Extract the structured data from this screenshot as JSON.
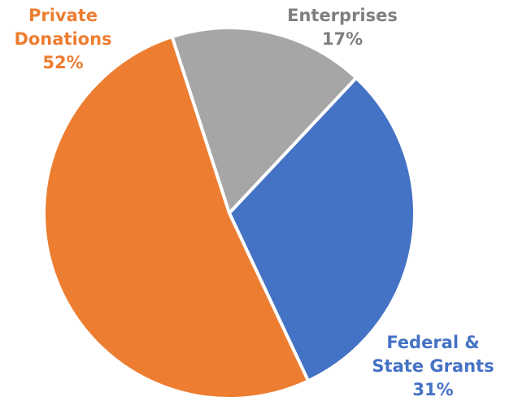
{
  "chart_data": {
    "type": "pie",
    "slices": [
      {
        "id": "enterprises",
        "label_lines": [
          "Enterprises"
        ],
        "value_label": "17%",
        "value": 17,
        "color": "#a6a6a6",
        "text_color": "#7f7f7f"
      },
      {
        "id": "federal-state-grants",
        "label_lines": [
          "Federal &",
          "State Grants"
        ],
        "value_label": "31%",
        "value": 31,
        "color": "#4472c4",
        "text_color": "#4472c4"
      },
      {
        "id": "private-donations",
        "label_lines": [
          "Private",
          "Donations"
        ],
        "value_label": "52%",
        "value": 52,
        "color": "#ed7d31",
        "text_color": "#ed7d31"
      }
    ],
    "start_angle_deg": -18,
    "direction": "clockwise",
    "slice_separator_color": "#ffffff",
    "legend": "none"
  }
}
